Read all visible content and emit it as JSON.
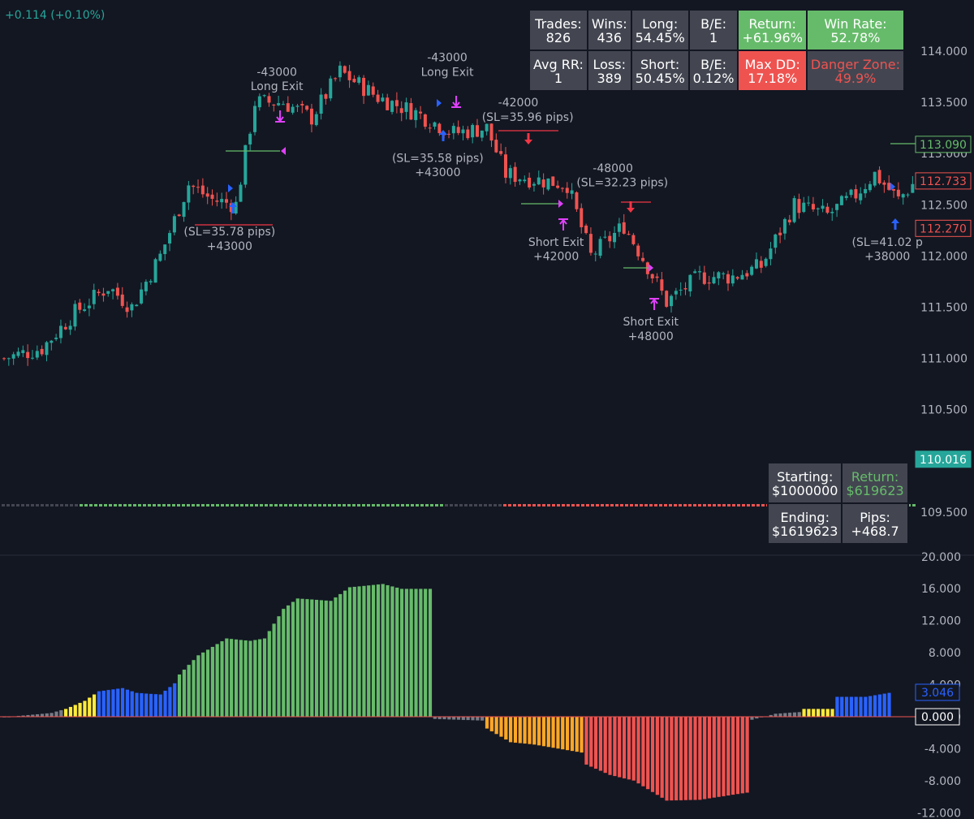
{
  "header": {
    "change_text": "+0.114 (+0.10%)"
  },
  "stats": {
    "trades_label": "Trades:",
    "trades_value": "826",
    "wins_label": "Wins:",
    "wins_value": "436",
    "long_label": "Long:",
    "long_value": "54.45%",
    "be_label": "B/E:",
    "be_value": "1",
    "return_label": "Return:",
    "return_value": "+61.96%",
    "winrate_label": "Win Rate:",
    "winrate_value": "52.78%",
    "avgrr_label": "Avg RR:",
    "avgrr_value": "1",
    "loss_label": "Loss:",
    "loss_value": "389",
    "short_label": "Short:",
    "short_value": "50.45%",
    "be_pct_label": "B/E:",
    "be_pct_value": "0.12%",
    "maxdd_label": "Max DD:",
    "maxdd_value": "17.18%",
    "danger_label": "Danger Zone:",
    "danger_value": "49.9%"
  },
  "capital": {
    "starting_label": "Starting:",
    "starting_value": "$1000000",
    "return_label": "Return:",
    "return_value": "$619623",
    "ending_label": "Ending:",
    "ending_value": "$1619623",
    "pips_label": "Pips:",
    "pips_value": "+468.7"
  },
  "colors": {
    "background": "#131722",
    "up": "#26a69a",
    "down": "#ef5350",
    "hist_green": "#66bb6a",
    "hist_blue": "#2962ff",
    "hist_yellow": "#ffeb3b",
    "hist_gray": "#787b86",
    "hist_orange": "#ffa726",
    "hist_red": "#ef5350",
    "label_text": "#b2b5be",
    "long_marker": "#2962ff",
    "exit_marker": "#e040fb",
    "short_marker": "#f23645"
  },
  "chart_data": [
    {
      "type": "candlestick",
      "ylim": [
        109.3,
        114.2
      ],
      "y_ticks": [
        "114.000",
        "113.500",
        "113.000",
        "112.500",
        "112.000",
        "111.500",
        "111.000",
        "110.500",
        "109.500"
      ],
      "price_boxes": [
        {
          "value": 113.09,
          "label": "113.090",
          "style": "outline-green"
        },
        {
          "value": 112.733,
          "label": "112.733",
          "style": "outline-red"
        },
        {
          "value": 112.27,
          "label": "112.270",
          "style": "outline-red"
        },
        {
          "value": 110.016,
          "label": "110.016",
          "style": "filled-teal"
        }
      ],
      "close_path": [
        {
          "i": 0,
          "y": 111.0
        },
        {
          "i": 8,
          "y": 111.1
        },
        {
          "i": 15,
          "y": 111.45
        },
        {
          "i": 22,
          "y": 111.7
        },
        {
          "i": 27,
          "y": 111.5
        },
        {
          "i": 33,
          "y": 112.0
        },
        {
          "i": 39,
          "y": 112.7
        },
        {
          "i": 44,
          "y": 112.55
        },
        {
          "i": 49,
          "y": 112.5
        },
        {
          "i": 53,
          "y": 113.5
        },
        {
          "i": 59,
          "y": 113.5
        },
        {
          "i": 65,
          "y": 113.35
        },
        {
          "i": 71,
          "y": 113.8
        },
        {
          "i": 79,
          "y": 113.55
        },
        {
          "i": 87,
          "y": 113.4
        },
        {
          "i": 95,
          "y": 113.2
        },
        {
          "i": 102,
          "y": 113.25
        },
        {
          "i": 106,
          "y": 112.8
        },
        {
          "i": 112,
          "y": 112.75
        },
        {
          "i": 119,
          "y": 112.7
        },
        {
          "i": 124,
          "y": 112.0
        },
        {
          "i": 131,
          "y": 112.3
        },
        {
          "i": 136,
          "y": 111.9
        },
        {
          "i": 140,
          "y": 111.55
        },
        {
          "i": 147,
          "y": 111.8
        },
        {
          "i": 154,
          "y": 111.8
        },
        {
          "i": 160,
          "y": 111.9
        },
        {
          "i": 167,
          "y": 112.5
        },
        {
          "i": 174,
          "y": 112.4
        },
        {
          "i": 180,
          "y": 112.6
        },
        {
          "i": 184,
          "y": 112.8
        },
        {
          "i": 189,
          "y": 112.55
        },
        {
          "i": 192,
          "y": 112.7
        },
        {
          "i": 196,
          "y": 112.73
        }
      ],
      "overlay_texts": [
        {
          "text": "-43000",
          "xi": 58,
          "y": 113.76
        },
        {
          "text": "Long Exit",
          "xi": 58,
          "y": 113.62
        },
        {
          "text": "-43000",
          "xi": 94,
          "y": 113.9
        },
        {
          "text": "Long Exit",
          "xi": 94,
          "y": 113.76
        },
        {
          "text": "-42000",
          "xi": 109,
          "y": 113.46
        },
        {
          "text": "(SL=35.96 pips)",
          "xi": 111,
          "y": 113.32
        },
        {
          "text": "(SL=35.58 pips)",
          "xi": 92,
          "y": 112.92
        },
        {
          "text": "+43000",
          "xi": 92,
          "y": 112.78
        },
        {
          "text": "-48000",
          "xi": 129,
          "y": 112.82
        },
        {
          "text": "(SL=32.23 pips)",
          "xi": 131,
          "y": 112.68
        },
        {
          "text": "(SL=35.78 pips)",
          "xi": 48,
          "y": 112.2
        },
        {
          "text": "+43000",
          "xi": 48,
          "y": 112.06
        },
        {
          "text": "Short Exit",
          "xi": 117,
          "y": 112.1
        },
        {
          "text": "+42000",
          "xi": 117,
          "y": 111.96
        },
        {
          "text": "Short Exit",
          "xi": 137,
          "y": 111.32
        },
        {
          "text": "+48000",
          "xi": 137,
          "y": 111.18
        },
        {
          "text": "(SL=41.02 p",
          "xi": 187,
          "y": 112.1
        },
        {
          "text": "+38000",
          "xi": 187,
          "y": 111.96
        }
      ]
    },
    {
      "type": "bar",
      "ylim": [
        -12,
        20
      ],
      "y_ticks": [
        "20.000",
        "16.000",
        "12.000",
        "8.000",
        "4.000",
        "0.000",
        "-4.000",
        "-8.000",
        "-12.000"
      ],
      "value_boxes": [
        {
          "value": 3.046,
          "label": "3.046",
          "color": "#2962ff"
        },
        {
          "value": 0.0,
          "label": "0.000",
          "color": "#ffffff"
        }
      ],
      "anchors": [
        [
          0,
          -0.05,
          "gray"
        ],
        [
          10,
          0.5,
          "gray"
        ],
        [
          13,
          1.0,
          "yellow"
        ],
        [
          17,
          2.0,
          "yellow"
        ],
        [
          20,
          3.2,
          "blue"
        ],
        [
          25,
          3.6,
          "blue"
        ],
        [
          28,
          3.0,
          "blue"
        ],
        [
          33,
          2.8,
          "blue"
        ],
        [
          36,
          4.2,
          "blue"
        ],
        [
          37,
          5.3,
          "green"
        ],
        [
          41,
          7.7,
          "green"
        ],
        [
          47,
          9.8,
          "green"
        ],
        [
          52,
          9.5,
          "green"
        ],
        [
          55,
          9.8,
          "green"
        ],
        [
          59,
          13.5,
          "green"
        ],
        [
          62,
          14.8,
          "green"
        ],
        [
          69,
          14.5,
          "green"
        ],
        [
          73,
          16.2,
          "green"
        ],
        [
          80,
          16.6,
          "green"
        ],
        [
          84,
          16.0,
          "green"
        ],
        [
          90,
          16.0,
          "green"
        ],
        [
          91,
          -0.3,
          "gray"
        ],
        [
          101,
          -0.5,
          "gray"
        ],
        [
          102,
          -1.5,
          "orange"
        ],
        [
          107,
          -3.2,
          "orange"
        ],
        [
          112,
          -3.5,
          "orange"
        ],
        [
          122,
          -4.5,
          "orange"
        ],
        [
          123,
          -6.0,
          "red"
        ],
        [
          128,
          -7.3,
          "red"
        ],
        [
          133,
          -8.0,
          "red"
        ],
        [
          140,
          -10.5,
          "red"
        ],
        [
          147,
          -10.4,
          "red"
        ],
        [
          157,
          -9.5,
          "red"
        ],
        [
          158,
          -0.4,
          "gray"
        ],
        [
          163,
          0.4,
          "gray"
        ],
        [
          168,
          0.6,
          "gray"
        ],
        [
          169,
          1.0,
          "yellow"
        ],
        [
          175,
          1.0,
          "yellow"
        ],
        [
          176,
          2.5,
          "blue"
        ],
        [
          182,
          2.5,
          "blue"
        ],
        [
          187,
          3.0,
          "blue"
        ]
      ]
    }
  ]
}
